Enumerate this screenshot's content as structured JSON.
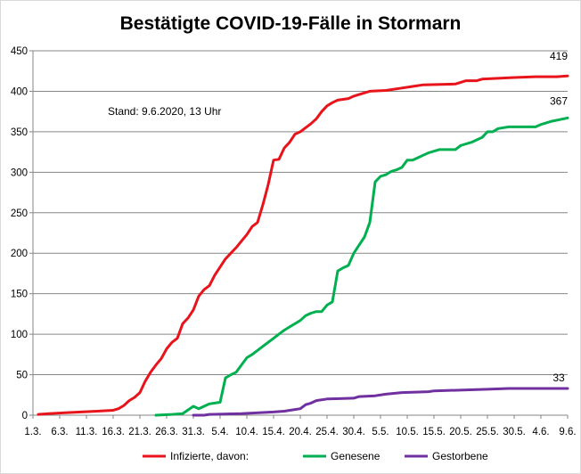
{
  "chart_data": {
    "type": "line",
    "title": "Bestätigte COVID-19-Fälle in Stormarn",
    "annotation": "Stand: 9.6.2020, 13 Uhr",
    "xlabel": "",
    "ylabel": "",
    "ylim": [
      0,
      450
    ],
    "yticks": [
      "0",
      "50",
      "100",
      "150",
      "200",
      "250",
      "300",
      "350",
      "400",
      "450"
    ],
    "xticks": [
      "1.3.",
      "6.3.",
      "11.3.",
      "16.3.",
      "21.3.",
      "26.3.",
      "31.3.",
      "5.4.",
      "10.4.",
      "15.4.",
      "20.4.",
      "25.4.",
      "30.4.",
      "5.5.",
      "10.5.",
      "15.5.",
      "20.5.",
      "25.5.",
      "30.5.",
      "4.6.",
      "9.6."
    ],
    "x_start": "1.3.2020",
    "grid": true,
    "legend_position": "bottom",
    "series": [
      {
        "name": "Infizierte, davon:",
        "color": "#e8141b",
        "end_label": "419",
        "points": [
          [
            "2.3.",
            1
          ],
          [
            "4.3.",
            2
          ],
          [
            "7.3.",
            3
          ],
          [
            "10.3.",
            4
          ],
          [
            "13.3.",
            5
          ],
          [
            "16.3.",
            6
          ],
          [
            "17.3.",
            8
          ],
          [
            "18.3.",
            12
          ],
          [
            "19.3.",
            18
          ],
          [
            "20.3.",
            22
          ],
          [
            "21.3.",
            28
          ],
          [
            "22.3.",
            42
          ],
          [
            "23.3.",
            53
          ],
          [
            "24.3.",
            62
          ],
          [
            "25.3.",
            70
          ],
          [
            "26.3.",
            82
          ],
          [
            "27.3.",
            90
          ],
          [
            "28.3.",
            95
          ],
          [
            "29.3.",
            113
          ],
          [
            "30.3.",
            120
          ],
          [
            "31.3.",
            130
          ],
          [
            "1.4.",
            147
          ],
          [
            "2.4.",
            155
          ],
          [
            "3.4.",
            160
          ],
          [
            "4.4.",
            173
          ],
          [
            "5.4.",
            183
          ],
          [
            "6.4.",
            193
          ],
          [
            "7.4.",
            200
          ],
          [
            "8.4.",
            207
          ],
          [
            "9.4.",
            215
          ],
          [
            "10.4.",
            223
          ],
          [
            "11.4.",
            233
          ],
          [
            "12.4.",
            238
          ],
          [
            "13.4.",
            260
          ],
          [
            "14.4.",
            285
          ],
          [
            "15.4.",
            315
          ],
          [
            "16.4.",
            316
          ],
          [
            "17.4.",
            330
          ],
          [
            "18.4.",
            337
          ],
          [
            "19.4.",
            347
          ],
          [
            "20.4.",
            350
          ],
          [
            "21.4.",
            355
          ],
          [
            "22.4.",
            360
          ],
          [
            "23.4.",
            366
          ],
          [
            "24.4.",
            375
          ],
          [
            "25.4.",
            382
          ],
          [
            "26.4.",
            386
          ],
          [
            "27.4.",
            389
          ],
          [
            "28.4.",
            390
          ],
          [
            "29.4.",
            391
          ],
          [
            "30.4.",
            394
          ],
          [
            "1.5.",
            396
          ],
          [
            "3.5.",
            400
          ],
          [
            "6.5.",
            401
          ],
          [
            "9.5.",
            404
          ],
          [
            "11.5.",
            406
          ],
          [
            "13.5.",
            408
          ],
          [
            "19.5.",
            409
          ],
          [
            "21.5.",
            413
          ],
          [
            "23.5.",
            413
          ],
          [
            "24.5.",
            415
          ],
          [
            "30.5.",
            417
          ],
          [
            "3.6.",
            418
          ],
          [
            "7.6.",
            418
          ],
          [
            "9.6.",
            419
          ]
        ]
      },
      {
        "name": "Genesene",
        "color": "#00b050",
        "end_label": "367",
        "points": [
          [
            "24.3.",
            0
          ],
          [
            "27.3.",
            1
          ],
          [
            "29.3.",
            2
          ],
          [
            "31.3.",
            11
          ],
          [
            "1.4.",
            8
          ],
          [
            "3.4.",
            14
          ],
          [
            "4.4.",
            15
          ],
          [
            "5.4.",
            16
          ],
          [
            "6.4.",
            46
          ],
          [
            "7.4.",
            50
          ],
          [
            "8.4.",
            53
          ],
          [
            "9.4.",
            62
          ],
          [
            "10.4.",
            71
          ],
          [
            "11.4.",
            75
          ],
          [
            "12.4.",
            80
          ],
          [
            "13.4.",
            85
          ],
          [
            "14.4.",
            90
          ],
          [
            "15.4.",
            95
          ],
          [
            "16.4.",
            100
          ],
          [
            "17.4.",
            105
          ],
          [
            "18.4.",
            109
          ],
          [
            "19.4.",
            113
          ],
          [
            "20.4.",
            117
          ],
          [
            "21.4.",
            123
          ],
          [
            "22.4.",
            126
          ],
          [
            "23.4.",
            128
          ],
          [
            "24.4.",
            128
          ],
          [
            "25.4.",
            136
          ],
          [
            "26.4.",
            140
          ],
          [
            "27.4.",
            178
          ],
          [
            "28.4.",
            182
          ],
          [
            "29.4.",
            185
          ],
          [
            "30.4.",
            200
          ],
          [
            "1.5.",
            210
          ],
          [
            "2.5.",
            220
          ],
          [
            "3.5.",
            238
          ],
          [
            "4.5.",
            288
          ],
          [
            "5.5.",
            295
          ],
          [
            "6.5.",
            297
          ],
          [
            "7.5.",
            301
          ],
          [
            "8.5.",
            303
          ],
          [
            "9.5.",
            306
          ],
          [
            "10.5.",
            315
          ],
          [
            "11.5.",
            315
          ],
          [
            "12.5.",
            318
          ],
          [
            "13.5.",
            321
          ],
          [
            "14.5.",
            324
          ],
          [
            "15.5.",
            326
          ],
          [
            "16.5.",
            328
          ],
          [
            "19.5.",
            328
          ],
          [
            "20.5.",
            333
          ],
          [
            "21.5.",
            335
          ],
          [
            "22.5.",
            337
          ],
          [
            "23.5.",
            340
          ],
          [
            "24.5.",
            343
          ],
          [
            "25.5.",
            350
          ],
          [
            "26.5.",
            350
          ],
          [
            "27.5.",
            354
          ],
          [
            "28.5.",
            355
          ],
          [
            "29.5.",
            356
          ],
          [
            "3.6.",
            356
          ],
          [
            "4.6.",
            359
          ],
          [
            "5.6.",
            361
          ],
          [
            "6.6.",
            363
          ],
          [
            "9.6.",
            367
          ]
        ]
      },
      {
        "name": "Gestorbene",
        "color": "#7030a0",
        "end_label": "33",
        "points": [
          [
            "31.3.",
            0
          ],
          [
            "2.4.",
            0
          ],
          [
            "3.4.",
            1
          ],
          [
            "9.4.",
            2
          ],
          [
            "15.4.",
            4
          ],
          [
            "17.4.",
            5
          ],
          [
            "20.4.",
            8
          ],
          [
            "21.4.",
            13
          ],
          [
            "22.4.",
            15
          ],
          [
            "23.4.",
            18
          ],
          [
            "25.4.",
            20
          ],
          [
            "30.4.",
            21
          ],
          [
            "1.5.",
            23
          ],
          [
            "4.5.",
            24
          ],
          [
            "6.5.",
            26
          ],
          [
            "9.5.",
            28
          ],
          [
            "14.5.",
            29
          ],
          [
            "15.5.",
            30
          ],
          [
            "25.5.",
            32
          ],
          [
            "29.5.",
            33
          ],
          [
            "9.6.",
            33
          ]
        ]
      }
    ]
  }
}
